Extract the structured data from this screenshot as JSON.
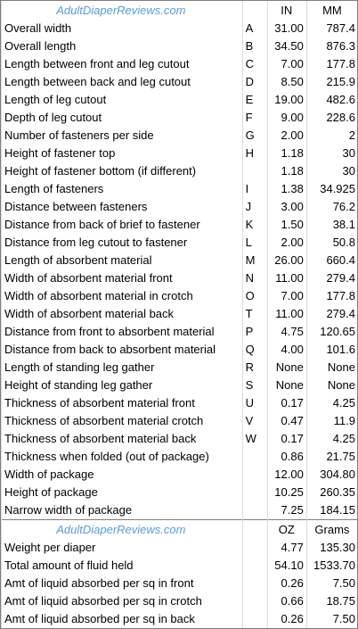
{
  "dimensions": {
    "brand": "AdultDiaperReviews.com",
    "col_in": "IN",
    "col_mm": "MM",
    "rows": [
      {
        "label": "Overall width",
        "code": "A",
        "in": "31.00",
        "mm": "787.4"
      },
      {
        "label": "Overall length",
        "code": "B",
        "in": "34.50",
        "mm": "876.3"
      },
      {
        "label": "Length between front and leg cutout",
        "code": "C",
        "in": "7.00",
        "mm": "177.8"
      },
      {
        "label": "Length between back and leg cutout",
        "code": "D",
        "in": "8.50",
        "mm": "215.9"
      },
      {
        "label": "Length of leg cutout",
        "code": "E",
        "in": "19.00",
        "mm": "482.6"
      },
      {
        "label": "Depth of leg cutout",
        "code": "F",
        "in": "9.00",
        "mm": "228.6"
      },
      {
        "label": "Number of fasteners per side",
        "code": "G",
        "in": "2.00",
        "mm": "2"
      },
      {
        "label": "Height of fastener top",
        "code": "H",
        "in": "1.18",
        "mm": "30"
      },
      {
        "label": "Height of fastener bottom (if different)",
        "code": "",
        "in": "1.18",
        "mm": "30"
      },
      {
        "label": "Length of fasteners",
        "code": "I",
        "in": "1.38",
        "mm": "34.925"
      },
      {
        "label": "Distance between fasteners",
        "code": "J",
        "in": "3.00",
        "mm": "76.2"
      },
      {
        "label": "Distance from back of brief to fastener",
        "code": "K",
        "in": "1.50",
        "mm": "38.1"
      },
      {
        "label": "Distance from leg cutout to fastener",
        "code": "L",
        "in": "2.00",
        "mm": "50.8"
      },
      {
        "label": "Length of absorbent material",
        "code": "M",
        "in": "26.00",
        "mm": "660.4"
      },
      {
        "label": "Width of absorbent material front",
        "code": "N",
        "in": "11.00",
        "mm": "279.4"
      },
      {
        "label": "Width of absorbent material in crotch",
        "code": "O",
        "in": "7.00",
        "mm": "177.8"
      },
      {
        "label": "Width of absorbent material back",
        "code": "T",
        "in": "11.00",
        "mm": "279.4"
      },
      {
        "label": "Distance from front to absorbent material",
        "code": "P",
        "in": "4.75",
        "mm": "120.65"
      },
      {
        "label": "Distance from back to absorbent material",
        "code": "Q",
        "in": "4.00",
        "mm": "101.6"
      },
      {
        "label": "Length of standing leg gather",
        "code": "R",
        "in": "None",
        "mm": "None"
      },
      {
        "label": "Height of standing leg gather",
        "code": "S",
        "in": "None",
        "mm": "None"
      },
      {
        "label": "Thickness of absorbent material front",
        "code": "U",
        "in": "0.17",
        "mm": "4.25"
      },
      {
        "label": "Thickness of absorbent material crotch",
        "code": "V",
        "in": "0.47",
        "mm": "11.9"
      },
      {
        "label": "Thickness of absorbent material back",
        "code": "W",
        "in": "0.17",
        "mm": "4.25"
      },
      {
        "label": "Thickness when folded (out of package)",
        "code": "",
        "in": "0.86",
        "mm": "21.75"
      },
      {
        "label": "Width of package",
        "code": "",
        "in": "12.00",
        "mm": "304.80"
      },
      {
        "label": "Height of package",
        "code": "",
        "in": "10.25",
        "mm": "260.35"
      },
      {
        "label": "Narrow width of package",
        "code": "",
        "in": "7.25",
        "mm": "184.15"
      }
    ]
  },
  "absorbency": {
    "brand": "AdultDiaperReviews.com",
    "col_oz": "OZ",
    "col_grams": "Grams",
    "rows": [
      {
        "label": "Weight per diaper",
        "oz": "4.77",
        "grams": "135.30"
      },
      {
        "label": "Total amount of fluid held",
        "oz": "54.10",
        "grams": "1533.70"
      },
      {
        "label": "Amt of liquid absorbed per sq in front",
        "oz": "0.26",
        "grams": "7.50"
      },
      {
        "label": "Amt of liquid absorbed per sq in crotch",
        "oz": "0.66",
        "grams": "18.75"
      },
      {
        "label": "Amt of liquid absorbed per sq in back",
        "oz": "0.26",
        "grams": "7.50"
      }
    ]
  }
}
